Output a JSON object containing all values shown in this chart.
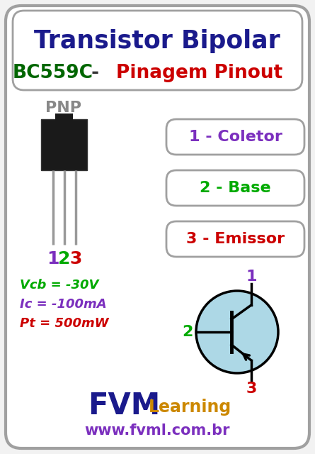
{
  "title1": "Transistor Bipolar",
  "title2_part1": "BC559C",
  "title2_sep": " - ",
  "title2_part2": "Pinagem Pinout",
  "type_label": "PNP",
  "pin_labels": [
    "1",
    "2",
    "3"
  ],
  "pin_colors": [
    "#7B2FBE",
    "#00AA00",
    "#CC0000"
  ],
  "pin_names": [
    "1 - Coletor",
    "2 - Base",
    "3 - Emissor"
  ],
  "pin_name_colors": [
    "#7B2FBE",
    "#00AA00",
    "#CC0000"
  ],
  "specs": [
    "Vcb = -30V",
    "Ic = -100mA",
    "Pt = 500mW"
  ],
  "specs_colors": [
    "#00AA00",
    "#7B2FBE",
    "#CC0000"
  ],
  "fvm_color": "#1A1A8C",
  "learning_color": "#CC8800",
  "url_color": "#7B2FBE",
  "bg_color": "#F2F2F2",
  "outer_border_color": "#A0A0A0",
  "transistor_circle_color": "#ADD8E6",
  "transistor_circle_edge": "#000000",
  "transistor_line_color": "#000000",
  "title1_color": "#1A1A8C",
  "title2_color1": "#006600",
  "title2_color2": "#CC0000",
  "title2_dash_color": "#333333",
  "pnp_label_color": "#888888"
}
